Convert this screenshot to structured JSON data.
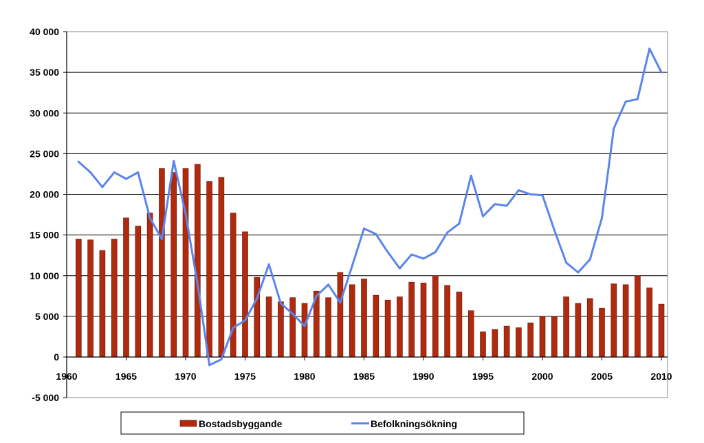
{
  "chart_data": {
    "type": "bar",
    "x": [
      1961,
      1962,
      1963,
      1964,
      1965,
      1966,
      1967,
      1968,
      1969,
      1970,
      1971,
      1972,
      1973,
      1974,
      1975,
      1976,
      1977,
      1978,
      1979,
      1980,
      1981,
      1982,
      1983,
      1984,
      1985,
      1986,
      1987,
      1988,
      1989,
      1990,
      1991,
      1992,
      1993,
      1994,
      1995,
      1996,
      1997,
      1998,
      1999,
      2000,
      2001,
      2002,
      2003,
      2004,
      2005,
      2006,
      2007,
      2008,
      2009,
      2010
    ],
    "series": [
      {
        "name": "Bostadsbyggande",
        "kind": "bar",
        "color": "#b22a0e",
        "values": [
          14500,
          14400,
          13100,
          14500,
          17100,
          16100,
          17700,
          23200,
          22700,
          23200,
          23700,
          21600,
          22100,
          17700,
          15400,
          9800,
          7400,
          6800,
          7300,
          6600,
          8100,
          7300,
          10400,
          8900,
          9600,
          7600,
          7000,
          7400,
          9200,
          9100,
          10000,
          8800,
          8000,
          5700,
          3100,
          3400,
          3800,
          3600,
          4200,
          5000,
          5000,
          7400,
          6600,
          7200,
          6000,
          9000,
          8900,
          10000,
          8500,
          6500
        ]
      },
      {
        "name": "Befolkningsökning",
        "kind": "line",
        "color": "#5b84ec",
        "values": [
          24000,
          22700,
          20900,
          22700,
          21900,
          22700,
          17100,
          14500,
          24100,
          17600,
          9000,
          -1000,
          -300,
          3600,
          4500,
          7200,
          11400,
          6600,
          5300,
          3800,
          7500,
          8900,
          6700,
          11200,
          15800,
          15100,
          12900,
          10900,
          12600,
          12100,
          12900,
          15300,
          16400,
          22300,
          17300,
          18800,
          18600,
          20500,
          20000,
          19900,
          15600,
          11600,
          10400,
          12000,
          17100,
          28100,
          31400,
          31700,
          37900,
          35000
        ]
      }
    ],
    "xticks": [
      "1960",
      "1965",
      "1970",
      "1975",
      "1980",
      "1985",
      "1990",
      "1995",
      "2000",
      "2005",
      "2010"
    ],
    "xtick_values": [
      1960,
      1965,
      1970,
      1975,
      1980,
      1985,
      1990,
      1995,
      2000,
      2005,
      2010
    ],
    "yticks": [
      "40 000",
      "35 000",
      "30 000",
      "25 000",
      "20 000",
      "15 000",
      "10 000",
      "5 000",
      "0",
      "-5 000"
    ],
    "ytick_values": [
      40000,
      35000,
      30000,
      25000,
      20000,
      15000,
      10000,
      5000,
      0,
      -5000
    ],
    "ylim": [
      -5000,
      40000
    ],
    "xlim": [
      1960,
      2010.5
    ],
    "grid": true,
    "legend_position": "bottom"
  },
  "legend": {
    "items": [
      {
        "label": "Bostadsbyggande",
        "symbol": "bar",
        "color": "#b22a0e"
      },
      {
        "label": "Befolkningsökning",
        "symbol": "line",
        "color": "#5b84ec"
      }
    ]
  }
}
